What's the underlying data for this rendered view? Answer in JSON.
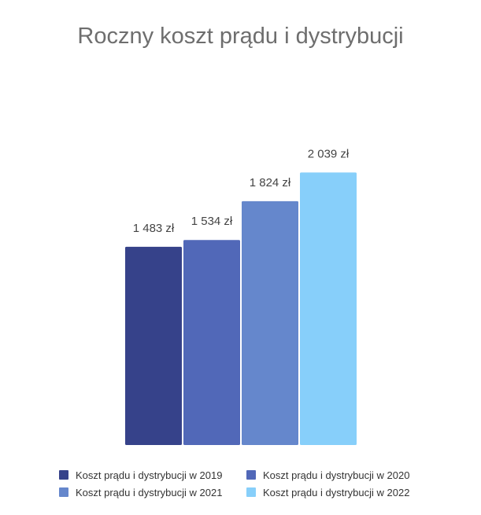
{
  "chart_data": {
    "type": "bar",
    "title": "Roczny koszt prądu i dystrybucji",
    "categories": [
      "2019",
      "2020",
      "2021",
      "2022"
    ],
    "series": [
      {
        "name": "Koszt prądu i dystrybucji w 2019",
        "value": 1483,
        "label": "1 483 zł",
        "color": "#36428a"
      },
      {
        "name": "Koszt prądu i dystrybucji w 2020",
        "value": 1534,
        "label": "1 534 zł",
        "color": "#5168b8"
      },
      {
        "name": "Koszt prądu i dystrybucji w 2021",
        "value": 1824,
        "label": "1 824 zł",
        "color": "#6587cc"
      },
      {
        "name": "Koszt prądu i dystrybucji w 2022",
        "value": 2039,
        "label": "2 039 zł",
        "color": "#87cffa"
      }
    ],
    "ylim": [
      0,
      2800
    ],
    "xlabel": "",
    "ylabel": "",
    "grid": false,
    "legend_position": "bottom"
  }
}
